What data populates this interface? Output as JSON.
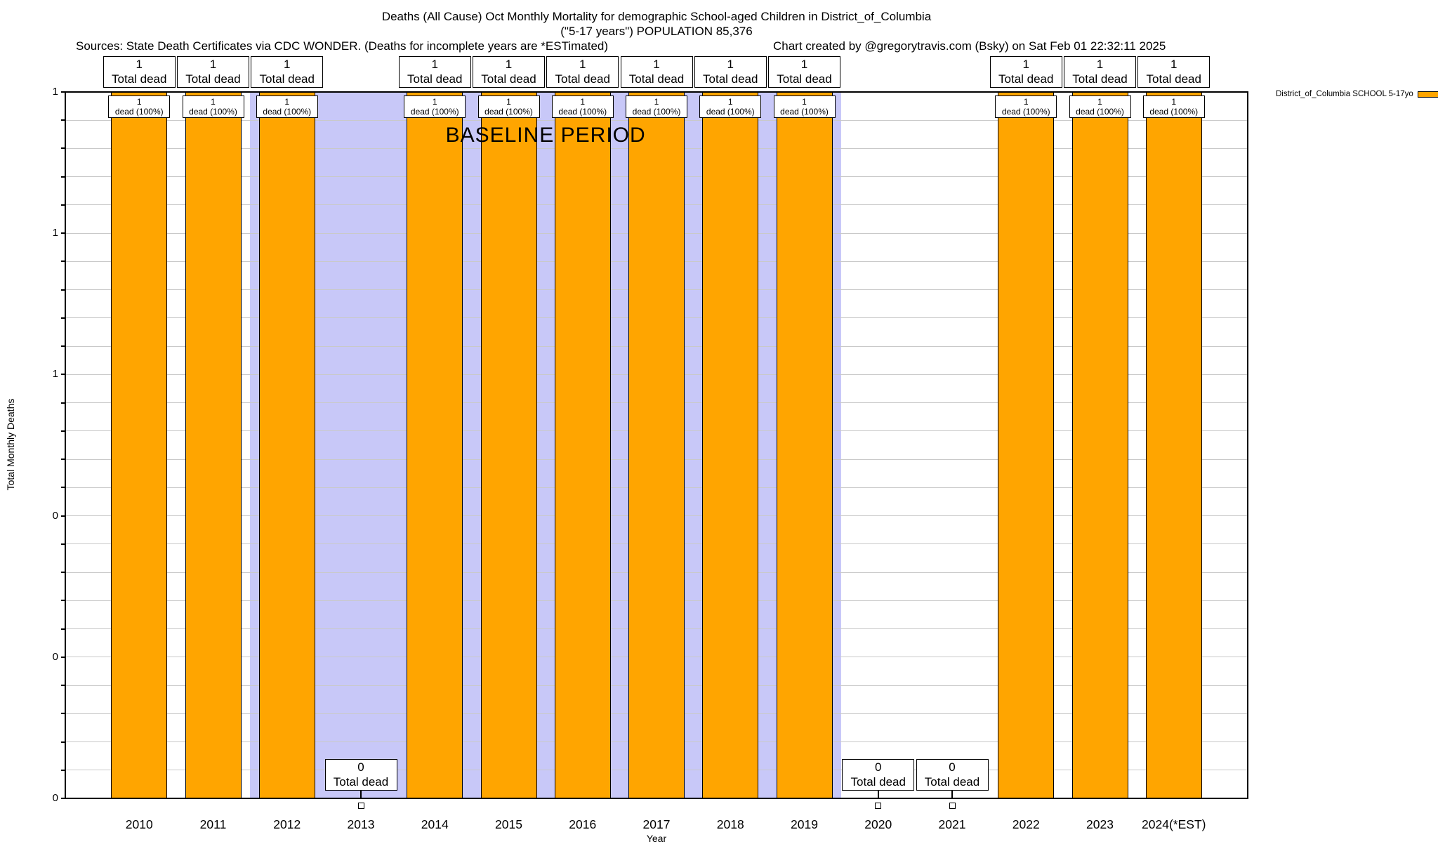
{
  "header": {
    "title_line1": "Deaths (All Cause) Oct Monthly Mortality for demographic School-aged Children in District_of_Columbia",
    "title_line2": "(\"5-17 years\") POPULATION 85,376",
    "sources": "Sources: State Death Certificates via CDC WONDER. (Deaths for incomplete years are *ESTimated)",
    "credit": "Chart created by @gregorytravis.com (Bsky) on Sat Feb 01 22:32:11 2025"
  },
  "chart_data": {
    "type": "bar",
    "title": "Deaths (All Cause) Oct Monthly Mortality for demographic School-aged Children in District_of_Columbia (\"5-17 years\") POPULATION 85,376",
    "categories": [
      "2010",
      "2011",
      "2012",
      "2013",
      "2014",
      "2015",
      "2016",
      "2017",
      "2018",
      "2019",
      "2020",
      "2021",
      "2022",
      "2023",
      "2024(*EST)"
    ],
    "series": [
      {
        "name": "District_of_Columbia SCHOOL 5-17yo",
        "color": "#ffa500",
        "values": [
          1,
          1,
          1,
          0,
          1,
          1,
          1,
          1,
          1,
          1,
          0,
          0,
          1,
          1,
          1
        ]
      }
    ],
    "xlabel": "Year",
    "ylabel": "Total Monthly Deaths",
    "ylim": [
      0,
      1
    ],
    "ytick_labels": [
      "1",
      "1",
      "1",
      "0",
      "0",
      "0"
    ],
    "grid": true,
    "minor_gridline_intervals": 25,
    "legend_position": "top-right",
    "legend_label": "District_of_Columbia SCHOOL 5-17yo",
    "baseline_band": {
      "label": "BASELINE PERIOD",
      "start_category": "2012",
      "end_category": "2019",
      "color": "#c8c8f8"
    },
    "years": [
      {
        "label": "2010",
        "value": 1,
        "top_box": [
          "1",
          "Total dead"
        ],
        "bar_box": [
          "1",
          "dead (100%)"
        ]
      },
      {
        "label": "2011",
        "value": 1,
        "top_box": [
          "1",
          "Total dead"
        ],
        "bar_box": [
          "1",
          "dead (100%)"
        ]
      },
      {
        "label": "2012",
        "value": 1,
        "top_box": [
          "1",
          "Total dead"
        ],
        "bar_box": [
          "1",
          "dead (100%)"
        ]
      },
      {
        "label": "2013",
        "value": 0,
        "bottom_box": [
          "0",
          "Total dead"
        ]
      },
      {
        "label": "2014",
        "value": 1,
        "top_box": [
          "1",
          "Total dead"
        ],
        "bar_box": [
          "1",
          "dead (100%)"
        ]
      },
      {
        "label": "2015",
        "value": 1,
        "top_box": [
          "1",
          "Total dead"
        ],
        "bar_box": [
          "1",
          "dead (100%)"
        ]
      },
      {
        "label": "2016",
        "value": 1,
        "top_box": [
          "1",
          "Total dead"
        ],
        "bar_box": [
          "1",
          "dead (100%)"
        ]
      },
      {
        "label": "2017",
        "value": 1,
        "top_box": [
          "1",
          "Total dead"
        ],
        "bar_box": [
          "1",
          "dead (100%)"
        ]
      },
      {
        "label": "2018",
        "value": 1,
        "top_box": [
          "1",
          "Total dead"
        ],
        "bar_box": [
          "1",
          "dead (100%)"
        ]
      },
      {
        "label": "2019",
        "value": 1,
        "top_box": [
          "1",
          "Total dead"
        ],
        "bar_box": [
          "1",
          "dead (100%)"
        ]
      },
      {
        "label": "2020",
        "value": 0,
        "bottom_box": [
          "0",
          "Total dead"
        ]
      },
      {
        "label": "2021",
        "value": 0,
        "bottom_box": [
          "0",
          "Total dead"
        ]
      },
      {
        "label": "2022",
        "value": 1,
        "top_box": [
          "1",
          "Total dead"
        ],
        "bar_box": [
          "1",
          "dead (100%)"
        ]
      },
      {
        "label": "2023",
        "value": 1,
        "top_box": [
          "1",
          "Total dead"
        ],
        "bar_box": [
          "1",
          "dead (100%)"
        ]
      },
      {
        "label": "2024(*EST)",
        "value": 1,
        "top_box": [
          "1",
          "Total dead"
        ],
        "bar_box": [
          "1",
          "dead (100%)"
        ]
      }
    ]
  }
}
